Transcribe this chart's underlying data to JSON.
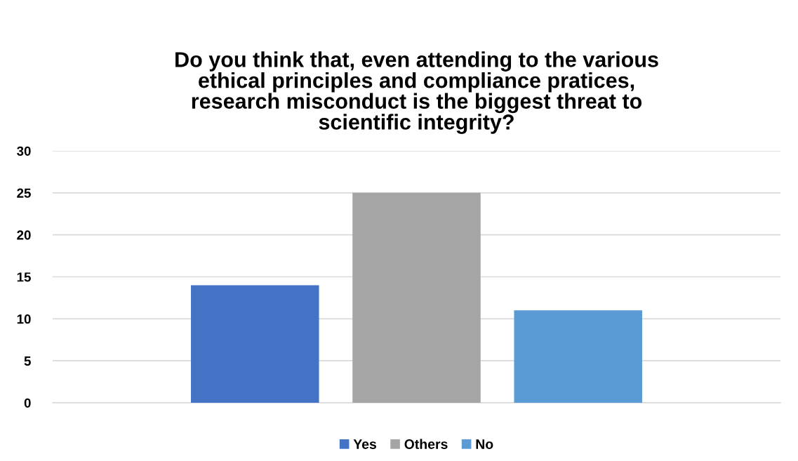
{
  "chart_data": {
    "type": "bar",
    "title": "Do you think that, even attending to the various\nethical principles and compliance pratices,\nresearch misconduct is the biggest threat to\nscientific integrity?",
    "categories": [
      null
    ],
    "series": [
      {
        "name": "Yes",
        "color": "#4472c4",
        "values": [
          14
        ]
      },
      {
        "name": "Others",
        "color": "#a5a5a5",
        "values": [
          25
        ]
      },
      {
        "name": "No",
        "color": "#5b9bd5",
        "values": [
          11
        ]
      }
    ],
    "ylim": [
      0,
      30
    ],
    "yticks": [
      0,
      5,
      10,
      15,
      20,
      25,
      30
    ],
    "grid": "y",
    "legend": "bottom"
  }
}
